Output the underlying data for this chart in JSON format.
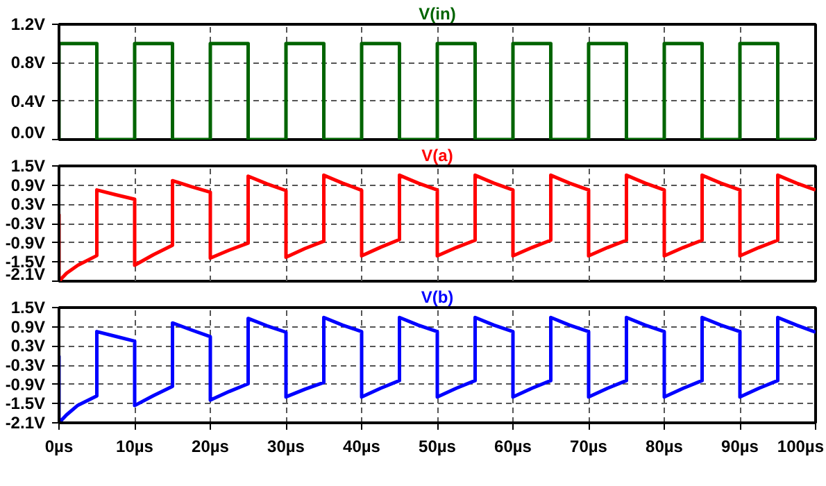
{
  "chart_data": [
    {
      "type": "line",
      "title": "V(in)",
      "tick_labels": "y",
      "grid": true,
      "line_style": "solid",
      "xlim": [
        0,
        100
      ],
      "xticks": [
        {
          "value": 0,
          "label": null
        },
        {
          "value": 10,
          "label": null
        },
        {
          "value": 20,
          "label": null
        },
        {
          "value": 30,
          "label": null
        },
        {
          "value": 40,
          "label": null
        },
        {
          "value": 50,
          "label": null
        },
        {
          "value": 60,
          "label": null
        },
        {
          "value": 70,
          "label": null
        },
        {
          "value": 80,
          "label": null
        },
        {
          "value": 90,
          "label": null
        },
        {
          "value": 100,
          "label": null
        }
      ],
      "ylim": [
        0,
        1.2
      ],
      "yticks": [
        {
          "value": 0,
          "label": "0.0V"
        },
        {
          "value": 0.4,
          "label": "0.4V"
        },
        {
          "value": 0.8,
          "label": "0.8V"
        },
        {
          "value": 1.2,
          "label": "1.2V"
        }
      ],
      "series": [
        {
          "color": "#006400",
          "x": [
            0,
            0,
            5,
            5,
            10,
            10,
            15,
            15,
            20,
            20,
            25,
            25,
            30,
            30,
            35,
            35,
            40,
            40,
            45,
            45,
            50,
            50,
            55,
            55,
            60,
            60,
            65,
            65,
            70,
            70,
            75,
            75,
            80,
            80,
            85,
            85,
            90,
            90,
            95,
            95,
            100
          ],
          "values": [
            0,
            1,
            1,
            0,
            0,
            1,
            1,
            0,
            0,
            1,
            1,
            0,
            0,
            1,
            1,
            0,
            0,
            1,
            1,
            0,
            0,
            1,
            1,
            0,
            0,
            1,
            1,
            0,
            0,
            1,
            1,
            0,
            0,
            1,
            1,
            0,
            0,
            1,
            1,
            0,
            0
          ]
        }
      ]
    },
    {
      "type": "line",
      "title": "V(a)",
      "tick_labels": "y",
      "grid": true,
      "line_style": "solid",
      "xlim": [
        0,
        100
      ],
      "xticks": [
        {
          "value": 0,
          "label": null
        },
        {
          "value": 10,
          "label": null
        },
        {
          "value": 20,
          "label": null
        },
        {
          "value": 30,
          "label": null
        },
        {
          "value": 40,
          "label": null
        },
        {
          "value": 50,
          "label": null
        },
        {
          "value": 60,
          "label": null
        },
        {
          "value": 70,
          "label": null
        },
        {
          "value": 80,
          "label": null
        },
        {
          "value": 90,
          "label": null
        },
        {
          "value": 100,
          "label": null
        }
      ],
      "ylim": [
        -2.1,
        1.5
      ],
      "yticks": [
        {
          "value": -2.1,
          "label": "-2.1V"
        },
        {
          "value": -1.5,
          "label": "-1.5V"
        },
        {
          "value": -0.9,
          "label": "-0.9V"
        },
        {
          "value": -0.3,
          "label": "-0.3V"
        },
        {
          "value": 0.3,
          "label": "0.3V"
        },
        {
          "value": 0.9,
          "label": "0.9V"
        },
        {
          "value": 1.5,
          "label": "1.5V"
        }
      ],
      "series": [
        {
          "color": "#ff0000",
          "x": [
            0,
            0,
            1,
            2.5,
            5,
            5,
            7.5,
            10,
            10,
            12.5,
            15,
            15,
            17.5,
            20,
            20,
            22.5,
            25,
            25,
            27.5,
            30,
            30,
            32.5,
            35,
            35,
            37.5,
            40,
            40,
            42.5,
            45,
            45,
            47.5,
            50,
            50,
            52.5,
            55,
            55,
            57.5,
            60,
            60,
            62.5,
            65,
            65,
            67.5,
            70,
            70,
            72.5,
            75,
            75,
            77.5,
            80,
            80,
            82.5,
            85,
            85,
            87.5,
            90,
            90,
            92.5,
            95,
            95,
            97.5,
            100
          ],
          "values": [
            0,
            -2.1,
            -1.85,
            -1.6,
            -1.3,
            0.75,
            0.6,
            0.46,
            -1.6,
            -1.27,
            -0.98,
            1.04,
            0.85,
            0.68,
            -1.38,
            -1.13,
            -0.91,
            1.18,
            0.94,
            0.73,
            -1.35,
            -1.08,
            -0.85,
            1.21,
            0.96,
            0.74,
            -1.31,
            -1.04,
            -0.8,
            1.21,
            0.96,
            0.75,
            -1.31,
            -1.05,
            -0.82,
            1.21,
            0.96,
            0.75,
            -1.31,
            -1.05,
            -0.82,
            1.21,
            0.96,
            0.75,
            -1.31,
            -1.05,
            -0.82,
            1.21,
            0.96,
            0.75,
            -1.31,
            -1.05,
            -0.82,
            1.21,
            0.96,
            0.75,
            -1.31,
            -1.05,
            -0.82,
            1.21,
            0.96,
            0.75
          ]
        }
      ]
    },
    {
      "type": "line",
      "title": "V(b)",
      "grid": true,
      "line_style": "solid",
      "xlim": [
        0,
        100
      ],
      "xticks": [
        {
          "value": 0,
          "label": "0µs"
        },
        {
          "value": 10,
          "label": "10µs"
        },
        {
          "value": 20,
          "label": "20µs"
        },
        {
          "value": 30,
          "label": "30µs"
        },
        {
          "value": 40,
          "label": "40µs"
        },
        {
          "value": 50,
          "label": "50µs"
        },
        {
          "value": 60,
          "label": "60µs"
        },
        {
          "value": 70,
          "label": "70µs"
        },
        {
          "value": 80,
          "label": "80µs"
        },
        {
          "value": 90,
          "label": "90µs"
        },
        {
          "value": 100,
          "label": "100µs"
        }
      ],
      "ylim": [
        -2.1,
        1.5
      ],
      "yticks": [
        {
          "value": -2.1,
          "label": "-2.1V"
        },
        {
          "value": -1.5,
          "label": "-1.5V"
        },
        {
          "value": -0.9,
          "label": "-0.9V"
        },
        {
          "value": -0.3,
          "label": "-0.3V"
        },
        {
          "value": 0.3,
          "label": "0.3V"
        },
        {
          "value": 0.9,
          "label": "0.9V"
        },
        {
          "value": 1.5,
          "label": "1.5V"
        }
      ],
      "series": [
        {
          "color": "#0000ff",
          "x": [
            0,
            0,
            1,
            2.5,
            5,
            5,
            7.5,
            10,
            10,
            12.5,
            15,
            15,
            17.5,
            20,
            20,
            22.5,
            25,
            25,
            27.5,
            30,
            30,
            32.5,
            35,
            35,
            37.5,
            40,
            40,
            42.5,
            45,
            45,
            47.5,
            50,
            50,
            52.5,
            55,
            55,
            57.5,
            60,
            60,
            62.5,
            65,
            65,
            67.5,
            70,
            70,
            72.5,
            75,
            75,
            77.5,
            80,
            80,
            82.5,
            85,
            85,
            87.5,
            90,
            90,
            92.5,
            95,
            95,
            97.5,
            100
          ],
          "values": [
            0,
            -2.1,
            -1.85,
            -1.55,
            -1.26,
            0.75,
            0.6,
            0.45,
            -1.56,
            -1.25,
            -0.96,
            1.02,
            0.8,
            0.59,
            -1.39,
            -1.12,
            -0.88,
            1.16,
            0.93,
            0.73,
            -1.29,
            -1.05,
            -0.84,
            1.19,
            0.95,
            0.75,
            -1.29,
            -1.02,
            -0.78,
            1.19,
            0.95,
            0.75,
            -1.29,
            -1.02,
            -0.78,
            1.19,
            0.95,
            0.75,
            -1.29,
            -1.02,
            -0.78,
            1.19,
            0.95,
            0.75,
            -1.29,
            -1.02,
            -0.78,
            1.19,
            0.95,
            0.75,
            -1.29,
            -1.02,
            -0.78,
            1.19,
            0.95,
            0.75,
            -1.29,
            -1.02,
            -0.78,
            1.19,
            0.95,
            0.73
          ]
        }
      ]
    }
  ]
}
